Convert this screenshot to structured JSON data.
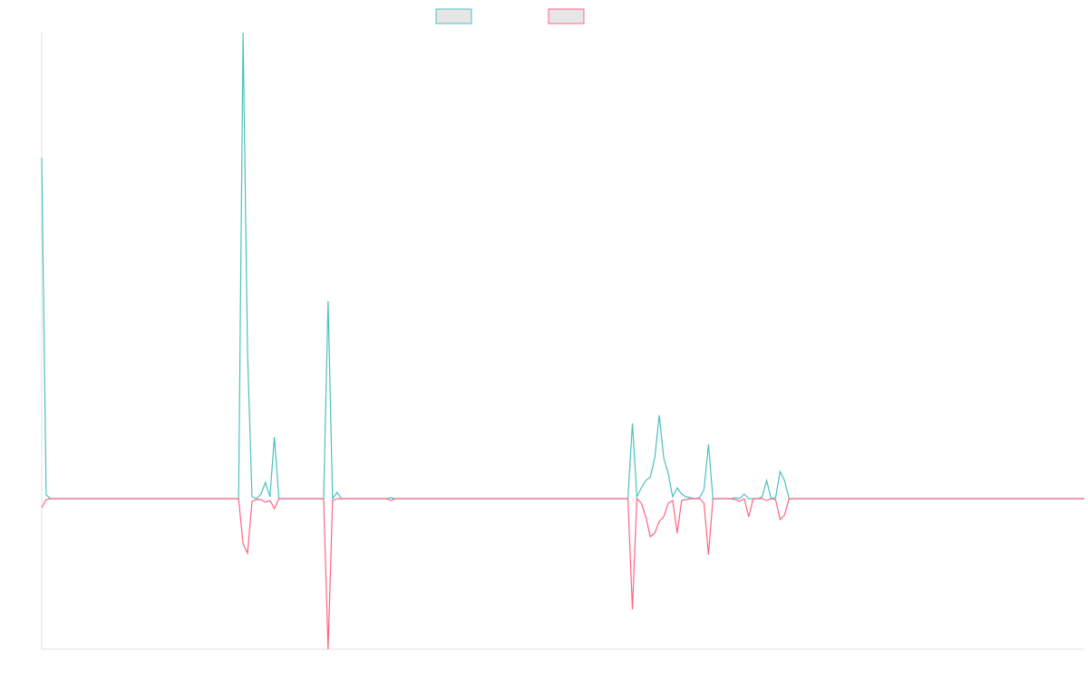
{
  "chart_data": {
    "type": "line",
    "x": [
      0,
      1,
      2,
      44,
      45,
      46,
      47,
      48,
      49,
      50,
      51,
      52,
      53,
      63,
      64,
      65,
      66,
      67,
      77,
      78,
      79,
      131,
      132,
      133,
      134,
      135,
      136,
      137,
      138,
      139,
      140,
      141,
      142,
      143,
      144,
      145,
      146,
      147,
      148,
      149,
      150,
      154,
      155,
      156,
      157,
      158,
      159,
      160,
      161,
      162,
      163,
      164,
      165,
      166,
      167,
      233
    ],
    "series": [
      {
        "color": "#4bc0c0",
        "values": [
          3.76,
          0.04,
          0,
          0,
          5.14,
          1.6,
          0.02,
          0,
          0.05,
          0.18,
          0.02,
          0.68,
          0,
          0,
          2.18,
          0,
          0.07,
          0,
          0,
          0.01,
          0,
          0,
          0.83,
          0.02,
          0.12,
          0.2,
          0.24,
          0.45,
          0.92,
          0.45,
          0.28,
          0.02,
          0.12,
          0.05,
          0.02,
          0.01,
          0,
          0.01,
          0.1,
          0.6,
          0,
          0,
          0.01,
          0,
          0.05,
          0,
          0,
          0,
          0.02,
          0.2,
          0,
          0.01,
          0.3,
          0.2,
          0,
          0
        ]
      },
      {
        "color": "#ff6384",
        "values": [
          -0.1,
          -0.01,
          0,
          0,
          -0.5,
          -0.6,
          -0.03,
          -0.01,
          -0.01,
          -0.04,
          -0.02,
          -0.11,
          0,
          0,
          -1.66,
          -0.02,
          0,
          0,
          0,
          -0.02,
          0,
          0,
          -1.22,
          0,
          -0.05,
          -0.2,
          -0.42,
          -0.38,
          -0.25,
          -0.2,
          -0.05,
          -0.02,
          -0.38,
          -0.02,
          -0.01,
          0,
          0,
          0,
          -0.05,
          -0.62,
          0,
          0,
          -0.01,
          -0.03,
          0,
          -0.2,
          0,
          0,
          0,
          -0.02,
          0,
          -0.01,
          -0.23,
          -0.18,
          0,
          0
        ]
      }
    ],
    "xlim": [
      0,
      233
    ],
    "ylim": [
      -1.66,
      5.14
    ]
  }
}
